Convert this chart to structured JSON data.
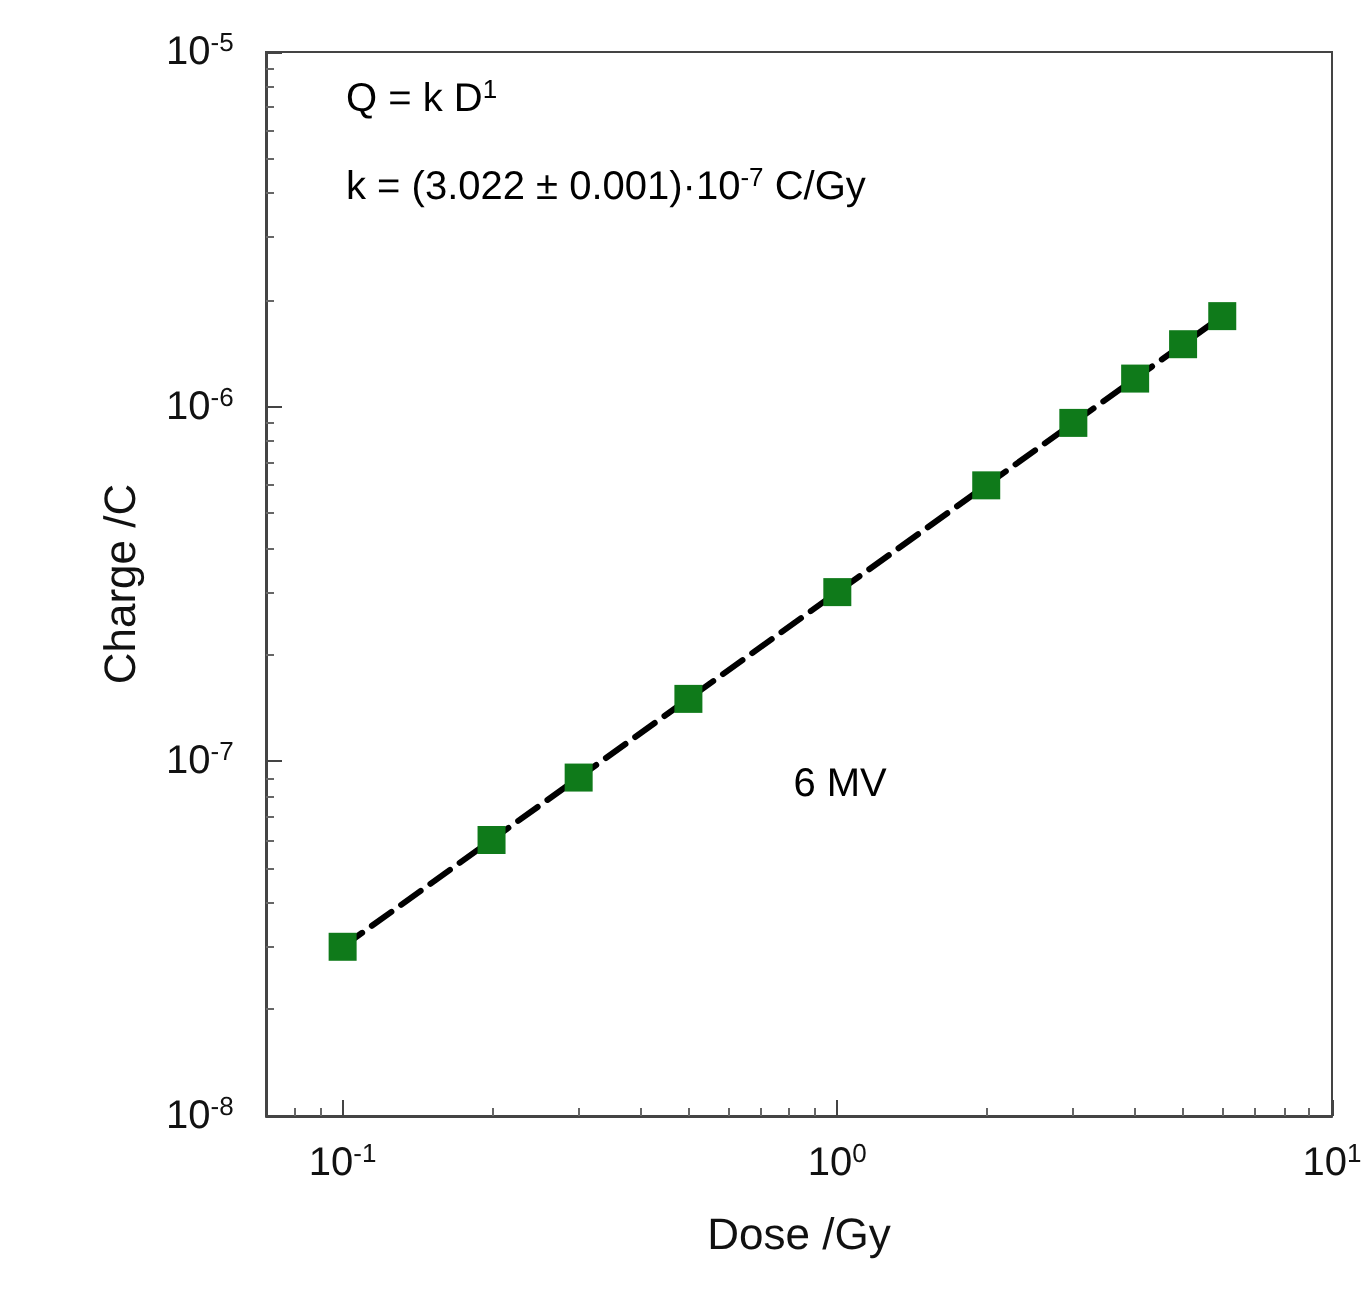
{
  "chart_data": {
    "type": "scatter",
    "xlabel": "Dose /Gy",
    "ylabel": "Charge /C",
    "log": "xy",
    "grid": false,
    "xlim": [
      0.07,
      10
    ],
    "ylim": [
      1e-08,
      1e-05
    ],
    "xticks": [
      {
        "value": 0.1,
        "label": "10$^{-1}$"
      },
      {
        "value": 1,
        "label": "10$^{0}$"
      },
      {
        "value": 10,
        "label": "10$^{1}$"
      }
    ],
    "yticks": [
      {
        "value": 1e-08,
        "label": "10$^{-8}$"
      },
      {
        "value": 1e-07,
        "label": "10$^{-7}$"
      },
      {
        "value": 1e-06,
        "label": "10$^{-6}$"
      },
      {
        "value": 1e-05,
        "label": "10$^{-5}$"
      }
    ],
    "annotations": [
      "Q = k D$^{1}$",
      "k = (3.022 ± 0.001)·10$^{-7}$ C/Gy",
      "6 MV"
    ],
    "series": [
      {
        "type": "line",
        "color": "#000000",
        "marker": "none",
        "line_style": "dashed",
        "x": [
          0.1,
          6
        ],
        "values": [
          3e-08,
          1.8e-06
        ]
      },
      {
        "color": "#0f7a1a",
        "marker": "square",
        "x": [
          0.1,
          0.2,
          0.3,
          0.5,
          1,
          2,
          3,
          4,
          5,
          6
        ],
        "values": [
          3e-08,
          6e-08,
          9e-08,
          1.5e-07,
          3e-07,
          6e-07,
          9e-07,
          1.2e-06,
          1.5e-06,
          1.8e-06
        ]
      }
    ]
  }
}
